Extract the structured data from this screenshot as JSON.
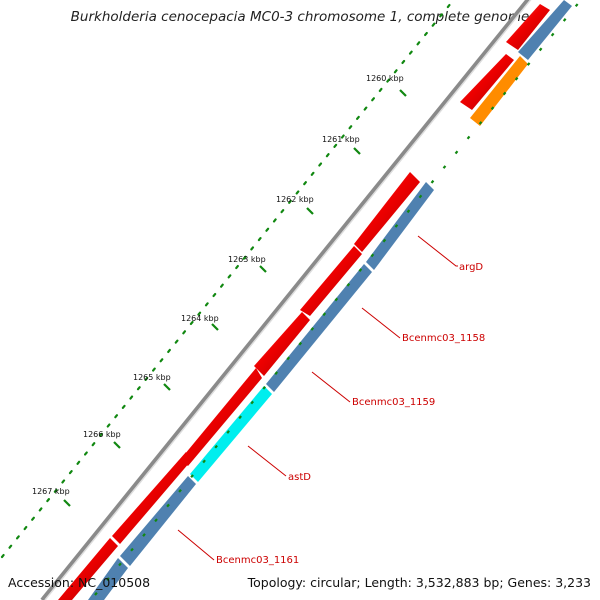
{
  "title": "Burkholderia cenocepacia MC0-3 chromosome 1, complete genome",
  "footer": {
    "accession": "Accession: NC_010508",
    "summary": "Topology: circular; Length: 3,532,883 bp; Genes: 3,233"
  },
  "ruler": {
    "ticks": [
      {
        "label": "1260 kbp",
        "kbp": 1260
      },
      {
        "label": "1261 kbp",
        "kbp": 1261
      },
      {
        "label": "1262 kbp",
        "kbp": 1262
      },
      {
        "label": "1263 kbp",
        "kbp": 1263
      },
      {
        "label": "1264 kbp",
        "kbp": 1264
      },
      {
        "label": "1265 kbp",
        "kbp": 1265
      },
      {
        "label": "1266 kbp",
        "kbp": 1266
      },
      {
        "label": "1267 kbp",
        "kbp": 1267
      }
    ]
  },
  "gene_labels": [
    {
      "text": "argD"
    },
    {
      "text": "Bcenmc03_1158"
    },
    {
      "text": "Bcenmc03_1159"
    },
    {
      "text": "astD"
    },
    {
      "text": "Bcenmc03_1161"
    }
  ],
  "colors": {
    "forward_cds": "#ee0000",
    "backbone": "#808080",
    "gene_track": "#4f81b0",
    "highlight_cyan": "#00eeee",
    "highlight_orange": "#ff8c00",
    "ruler_dots": "#118811",
    "label_red": "#cc0000"
  }
}
